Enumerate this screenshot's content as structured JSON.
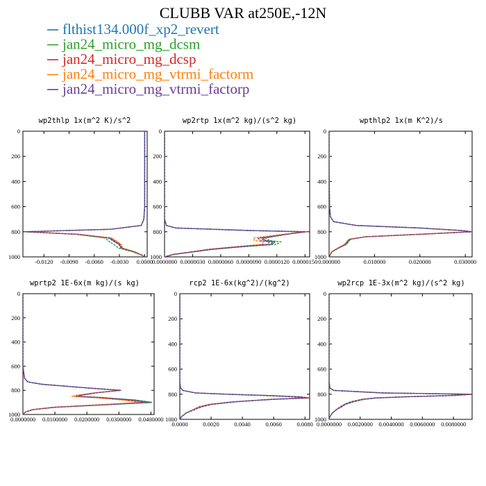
{
  "title": "CLUBB VAR at250E,-12N",
  "legend": [
    {
      "name": "flthist134.000f_xp2_revert",
      "color": "#1f77b4"
    },
    {
      "name": "jan24_micro_mg_dcsm",
      "color": "#2ca02c"
    },
    {
      "name": "jan24_micro_mg_dcsp",
      "color": "#d62728"
    },
    {
      "name": "jan24_micro_mg_vtrmi_factorm",
      "color": "#ff7f0e"
    },
    {
      "name": "jan24_micro_mg_vtrmi_factorp",
      "color": "#6a3d9a"
    }
  ],
  "chart_data": [
    {
      "type": "line",
      "title": "wp2thlp  1x(m^2 K)/s^2",
      "xlim": [
        -0.0145,
        0.0003
      ],
      "ylim": [
        1000,
        0
      ],
      "xticks": [
        -0.012,
        -0.009,
        -0.006,
        -0.003,
        0.0
      ],
      "xtick_labels": [
        "-0.0120",
        "-0.0090",
        "-0.0060",
        "-0.0030",
        "0.0000"
      ],
      "yticks": [
        0,
        200,
        400,
        600,
        800,
        1000
      ],
      "ytick_labels": [
        "0",
        "200",
        "400",
        "600",
        "800",
        "1000"
      ],
      "y": [
        0,
        100,
        200,
        300,
        400,
        500,
        600,
        700,
        750,
        780,
        800,
        820,
        850,
        880,
        900,
        930,
        960,
        990,
        1000
      ],
      "series": [
        {
          "name": "flthist134.000f_xp2_revert",
          "x": [
            0,
            0,
            0,
            0,
            0,
            0,
            0,
            -0.0001,
            -0.0004,
            -0.004,
            -0.0143,
            -0.008,
            -0.0042,
            -0.0035,
            -0.003,
            -0.0028,
            -0.0012,
            -0.0002,
            0
          ]
        },
        {
          "name": "jan24_micro_mg_dcsm",
          "x": [
            0,
            0,
            0,
            0,
            0,
            0,
            0,
            -0.0001,
            -0.0004,
            -0.004,
            -0.0141,
            -0.0082,
            -0.0047,
            -0.0042,
            -0.0037,
            -0.0031,
            -0.0014,
            -0.0002,
            0
          ]
        },
        {
          "name": "jan24_micro_mg_dcsp",
          "x": [
            0,
            0,
            0,
            0,
            0,
            0,
            0,
            -0.0001,
            -0.0004,
            -0.004,
            -0.014,
            -0.0079,
            -0.004,
            -0.0034,
            -0.0029,
            -0.0027,
            -0.0012,
            -0.0002,
            0
          ]
        },
        {
          "name": "jan24_micro_mg_vtrmi_factorm",
          "x": [
            0,
            0,
            0,
            0,
            0,
            0,
            0,
            -0.0001,
            -0.0004,
            -0.004,
            -0.0139,
            -0.0078,
            -0.0039,
            -0.0032,
            -0.0028,
            -0.0026,
            -0.0011,
            -0.0002,
            0
          ]
        },
        {
          "name": "jan24_micro_mg_vtrmi_factorp",
          "x": [
            0,
            0,
            0,
            0,
            0,
            0,
            0,
            -0.0001,
            -0.0004,
            -0.004,
            -0.0142,
            -0.0081,
            -0.0043,
            -0.0036,
            -0.0031,
            -0.0028,
            -0.0013,
            -0.0002,
            0
          ]
        }
      ]
    },
    {
      "type": "line",
      "title": "wp2rtp  1x(m^2 kg)/(s^2 kg)",
      "xlim": [
        0,
        1.55e-05
      ],
      "ylim": [
        1000,
        0
      ],
      "xticks": [
        0,
        3e-06,
        6e-06,
        9e-06,
        1.2e-05,
        1.5e-05
      ],
      "xtick_labels": [
        "0.0000000",
        "0.0000030",
        "0.0000060",
        "0.0000090",
        "0.0000120",
        "0.0000150"
      ],
      "yticks": [
        0,
        200,
        400,
        600,
        800,
        1000
      ],
      "ytick_labels": [
        "0",
        "200",
        "400",
        "600",
        "800",
        "1000"
      ],
      "y": [
        0,
        300,
        600,
        700,
        750,
        770,
        790,
        800,
        820,
        850,
        870,
        880,
        900,
        920,
        940,
        960,
        980,
        1000
      ],
      "series": [
        {
          "name": "flthist134.000f_xp2_revert",
          "x": [
            0,
            0,
            0,
            0,
            2e-07,
            1.2e-06,
            9e-06,
            1.5e-05,
            1.3e-05,
            1.05e-05,
            1.08e-05,
            1.18e-05,
            1.15e-05,
            8e-06,
            5e-06,
            3e-06,
            1e-06,
            0
          ]
        },
        {
          "name": "jan24_micro_mg_dcsm",
          "x": [
            0,
            0,
            0,
            0,
            2e-07,
            1.2e-06,
            9e-06,
            1.48e-05,
            1.31e-05,
            1.08e-05,
            1.12e-05,
            1.24e-05,
            1.2e-05,
            8.3e-06,
            5.2e-06,
            3.1e-06,
            1e-06,
            0
          ]
        },
        {
          "name": "jan24_micro_mg_dcsp",
          "x": [
            0,
            0,
            0,
            0,
            2e-07,
            1.2e-06,
            9e-06,
            1.52e-05,
            1.29e-05,
            1e-05,
            1.02e-05,
            1.12e-05,
            1.1e-05,
            7.7e-06,
            4.8e-06,
            2.9e-06,
            9e-07,
            0
          ]
        },
        {
          "name": "jan24_micro_mg_vtrmi_factorm",
          "x": [
            0,
            0,
            0,
            0,
            2e-07,
            1.2e-06,
            9e-06,
            1.49e-05,
            1.27e-05,
            9.5e-06,
            9.6e-06,
            1.06e-05,
            1.04e-05,
            7.4e-06,
            4.6e-06,
            2.8e-06,
            9e-07,
            0
          ]
        },
        {
          "name": "jan24_micro_mg_vtrmi_factorp",
          "x": [
            0,
            0,
            0,
            0,
            2e-07,
            1.2e-06,
            9e-06,
            1.51e-05,
            1.3e-05,
            1.03e-05,
            1.06e-05,
            1.16e-05,
            1.13e-05,
            7.9e-06,
            4.9e-06,
            3e-06,
            1e-06,
            0
          ]
        }
      ]
    },
    {
      "type": "line",
      "title": "wpthlp2  1x(m K^2)/s",
      "xlim": [
        0,
        0.0315
      ],
      "ylim": [
        1000,
        0
      ],
      "xticks": [
        0,
        0.01,
        0.02,
        0.03
      ],
      "xtick_labels": [
        "0.000000",
        "0.010000",
        "0.020000",
        "0.030000"
      ],
      "yticks": [
        0,
        200,
        400,
        600,
        800,
        1000
      ],
      "ytick_labels": [
        "0",
        "200",
        "400",
        "600",
        "800",
        "1000"
      ],
      "y": [
        0,
        300,
        600,
        680,
        720,
        750,
        770,
        790,
        800,
        820,
        840,
        860,
        880,
        900,
        930,
        960,
        1000
      ],
      "series": [
        {
          "name": "flthist134.000f_xp2_revert",
          "x": [
            0,
            0,
            0.0001,
            0.0003,
            0.001,
            0.006,
            0.02,
            0.029,
            0.0315,
            0.02,
            0.008,
            0.0045,
            0.004,
            0.0036,
            0.002,
            0.0006,
            0
          ]
        },
        {
          "name": "jan24_micro_mg_dcsm",
          "x": [
            0,
            0,
            0.0001,
            0.0003,
            0.001,
            0.006,
            0.02,
            0.0288,
            0.0312,
            0.0198,
            0.0079,
            0.0047,
            0.0043,
            0.0039,
            0.0021,
            0.0006,
            0
          ]
        },
        {
          "name": "jan24_micro_mg_dcsp",
          "x": [
            0,
            0,
            0.0001,
            0.0003,
            0.001,
            0.006,
            0.02,
            0.0291,
            0.0316,
            0.0201,
            0.0081,
            0.0044,
            0.0039,
            0.0035,
            0.002,
            0.0006,
            0
          ]
        },
        {
          "name": "jan24_micro_mg_vtrmi_factorm",
          "x": [
            0,
            0,
            0.0001,
            0.0003,
            0.001,
            0.006,
            0.02,
            0.0289,
            0.0313,
            0.0199,
            0.008,
            0.0043,
            0.0038,
            0.0034,
            0.0019,
            0.0006,
            0
          ]
        },
        {
          "name": "jan24_micro_mg_vtrmi_factorp",
          "x": [
            0,
            0,
            0.0001,
            0.0003,
            0.001,
            0.006,
            0.02,
            0.029,
            0.0314,
            0.02,
            0.008,
            0.0046,
            0.0041,
            0.0037,
            0.002,
            0.0006,
            0
          ]
        }
      ]
    },
    {
      "type": "line",
      "title": "wprtp2  1E-6x(m kg)/(s kg)",
      "xlim": [
        0,
        0.041
      ],
      "ylim": [
        1000,
        0
      ],
      "xticks": [
        0,
        0.01,
        0.02,
        0.03,
        0.04
      ],
      "xtick_labels": [
        "0.0000000",
        "0.0100000",
        "0.0200000",
        "0.0300000",
        "0.0400000"
      ],
      "yticks": [
        0,
        200,
        400,
        600,
        800,
        1000
      ],
      "ytick_labels": [
        "0",
        "200",
        "400",
        "600",
        "800",
        "1000"
      ],
      "y": [
        0,
        300,
        600,
        700,
        730,
        750,
        780,
        800,
        820,
        840,
        850,
        860,
        880,
        900,
        920,
        940,
        960,
        980,
        1000
      ],
      "series": [
        {
          "name": "flthist134.000f_xp2_revert",
          "x": [
            0,
            0,
            0,
            0.0005,
            0.0015,
            0.006,
            0.02,
            0.0305,
            0.023,
            0.018,
            0.017,
            0.024,
            0.034,
            0.0395,
            0.025,
            0.01,
            0.003,
            0.0008,
            0
          ]
        },
        {
          "name": "jan24_micro_mg_dcsm",
          "x": [
            0,
            0,
            0,
            0.0005,
            0.0015,
            0.006,
            0.02,
            0.0302,
            0.0232,
            0.0185,
            0.0176,
            0.025,
            0.0352,
            0.0405,
            0.0258,
            0.0104,
            0.0031,
            0.0008,
            0
          ]
        },
        {
          "name": "jan24_micro_mg_dcsp",
          "x": [
            0,
            0,
            0,
            0.0005,
            0.0015,
            0.006,
            0.02,
            0.0308,
            0.0228,
            0.0174,
            0.0162,
            0.023,
            0.032,
            0.0375,
            0.024,
            0.0096,
            0.0029,
            0.0008,
            0
          ]
        },
        {
          "name": "jan24_micro_mg_vtrmi_factorm",
          "x": [
            0,
            0,
            0,
            0.0005,
            0.0015,
            0.006,
            0.02,
            0.0304,
            0.0226,
            0.0168,
            0.0152,
            0.022,
            0.031,
            0.0365,
            0.0235,
            0.0094,
            0.0028,
            0.0008,
            0
          ]
        },
        {
          "name": "jan24_micro_mg_vtrmi_factorp",
          "x": [
            0,
            0,
            0,
            0.0005,
            0.0015,
            0.006,
            0.02,
            0.0306,
            0.0231,
            0.0182,
            0.0173,
            0.0244,
            0.0345,
            0.04,
            0.0254,
            0.0102,
            0.003,
            0.0008,
            0
          ]
        }
      ]
    },
    {
      "type": "line",
      "title": "rcp2  1E-6x(kg^2)/(kg^2)",
      "xlim": [
        0,
        0.0083
      ],
      "ylim": [
        1000,
        0
      ],
      "xticks": [
        0,
        0.002,
        0.004,
        0.006,
        0.008
      ],
      "xtick_labels": [
        "0.0000",
        "0.0020",
        "0.0040",
        "0.0060",
        "0.0080"
      ],
      "yticks": [
        0,
        200,
        400,
        600,
        800,
        1000
      ],
      "ytick_labels": [
        "0",
        "200",
        "400",
        "600",
        "800",
        "1000"
      ],
      "y": [
        0,
        300,
        600,
        700,
        750,
        770,
        790,
        800,
        810,
        820,
        830,
        840,
        860,
        880,
        900,
        920,
        950,
        980,
        1000
      ],
      "series": [
        {
          "name": "flthist134.000f_xp2_revert",
          "x": [
            0,
            0,
            0,
            0,
            5e-05,
            0.0002,
            0.001,
            0.003,
            0.0055,
            0.0075,
            0.0082,
            0.006,
            0.0035,
            0.002,
            0.0013,
            0.0009,
            0.0004,
            0.0001,
            0
          ]
        },
        {
          "name": "jan24_micro_mg_dcsm",
          "x": [
            0,
            0,
            0,
            0,
            5e-05,
            0.0002,
            0.001,
            0.0029,
            0.0052,
            0.0071,
            0.0078,
            0.0058,
            0.0036,
            0.0021,
            0.0014,
            0.001,
            0.0004,
            0.0001,
            0
          ]
        },
        {
          "name": "jan24_micro_mg_dcsp",
          "x": [
            0,
            0,
            0,
            0,
            5e-05,
            0.0002,
            0.001,
            0.0031,
            0.0056,
            0.0077,
            0.0083,
            0.0061,
            0.0034,
            0.0019,
            0.0012,
            0.0009,
            0.0004,
            0.0001,
            0
          ]
        },
        {
          "name": "jan24_micro_mg_vtrmi_factorm",
          "x": [
            0,
            0,
            0,
            0,
            5e-05,
            0.0002,
            0.001,
            0.003,
            0.0054,
            0.0073,
            0.008,
            0.0059,
            0.0035,
            0.002,
            0.0013,
            0.0009,
            0.0004,
            0.0001,
            0
          ]
        },
        {
          "name": "jan24_micro_mg_vtrmi_factorp",
          "x": [
            0,
            0,
            0,
            0,
            5e-05,
            0.0002,
            0.001,
            0.003,
            0.0055,
            0.0074,
            0.0081,
            0.006,
            0.0036,
            0.0021,
            0.0014,
            0.001,
            0.0004,
            0.0001,
            0
          ]
        }
      ]
    },
    {
      "type": "line",
      "title": "wp2rcp  1E-3x(m^2 kg)/(s^2 kg)",
      "xlim": [
        0,
        0.0092
      ],
      "ylim": [
        1000,
        0
      ],
      "xticks": [
        0,
        0.002,
        0.004,
        0.006,
        0.008
      ],
      "xtick_labels": [
        "0.0000000",
        "0.0020000",
        "0.0040000",
        "0.0060000",
        "0.0080000"
      ],
      "yticks": [
        0,
        200,
        400,
        600,
        800,
        1000
      ],
      "ytick_labels": [
        "0",
        "200",
        "400",
        "600",
        "800",
        "1000"
      ],
      "y": [
        0,
        300,
        600,
        700,
        750,
        770,
        790,
        800,
        810,
        820,
        830,
        840,
        860,
        880,
        900,
        920,
        950,
        980,
        1000
      ],
      "series": [
        {
          "name": "flthist134.000f_xp2_revert",
          "x": [
            0,
            0,
            0,
            0,
            5e-05,
            0.0003,
            0.0035,
            0.0092,
            0.008,
            0.005,
            0.003,
            0.0022,
            0.0015,
            0.001,
            0.0008,
            0.0005,
            0.0002,
            5e-05,
            0
          ]
        },
        {
          "name": "jan24_micro_mg_dcsm",
          "x": [
            0,
            0,
            0,
            0,
            5e-05,
            0.0003,
            0.0034,
            0.0088,
            0.0077,
            0.0049,
            0.0031,
            0.0023,
            0.0016,
            0.0011,
            0.0008,
            0.0005,
            0.0002,
            5e-05,
            0
          ]
        },
        {
          "name": "jan24_micro_mg_dcsp",
          "x": [
            0,
            0,
            0,
            0,
            5e-05,
            0.0003,
            0.0036,
            0.0093,
            0.0081,
            0.0051,
            0.0029,
            0.0021,
            0.0014,
            0.001,
            0.0007,
            0.0005,
            0.0002,
            5e-05,
            0
          ]
        },
        {
          "name": "jan24_micro_mg_vtrmi_factorm",
          "x": [
            0,
            0,
            0,
            0,
            5e-05,
            0.0003,
            0.0035,
            0.009,
            0.0079,
            0.005,
            0.003,
            0.0022,
            0.0015,
            0.001,
            0.0008,
            0.0005,
            0.0002,
            5e-05,
            0
          ]
        },
        {
          "name": "jan24_micro_mg_vtrmi_factorp",
          "x": [
            0,
            0,
            0,
            0,
            5e-05,
            0.0003,
            0.0035,
            0.0091,
            0.008,
            0.005,
            0.003,
            0.0022,
            0.0015,
            0.001,
            0.0008,
            0.0005,
            0.0002,
            5e-05,
            0
          ]
        }
      ]
    }
  ]
}
